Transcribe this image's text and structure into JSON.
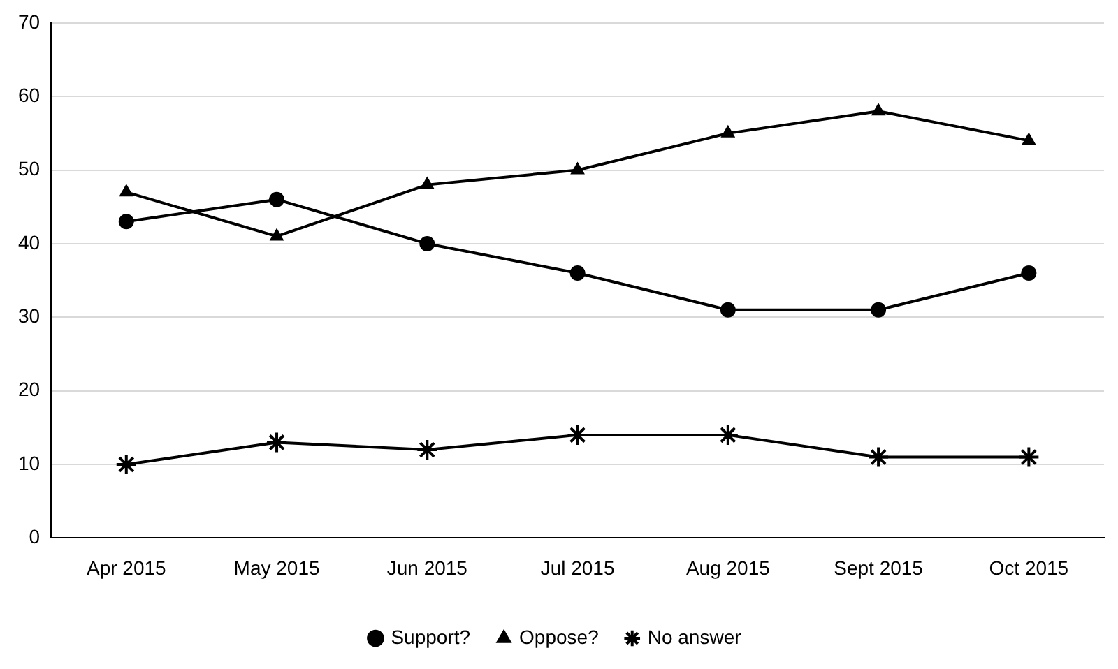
{
  "chart_data": {
    "type": "line",
    "categories": [
      "Apr 2015",
      "May 2015",
      "Jun 2015",
      "Jul 2015",
      "Aug 2015",
      "Sept 2015",
      "Oct 2015"
    ],
    "series": [
      {
        "name": "Support?",
        "color": "#000000",
        "marker": "circle",
        "values": [
          43,
          46,
          40,
          36,
          31,
          31,
          36
        ]
      },
      {
        "name": "Oppose?",
        "color": "#000000",
        "marker": "triangle",
        "values": [
          47,
          41,
          48,
          50,
          55,
          58,
          54
        ]
      },
      {
        "name": "No answer",
        "color": "#000000",
        "marker": "cross",
        "values": [
          10,
          13,
          12,
          14,
          14,
          11,
          11
        ]
      }
    ],
    "ylim": [
      0,
      70
    ],
    "yticks": [
      0,
      10,
      20,
      30,
      40,
      50,
      60,
      70
    ],
    "grid": "y",
    "legend": "bottom",
    "line_style": "solid"
  }
}
